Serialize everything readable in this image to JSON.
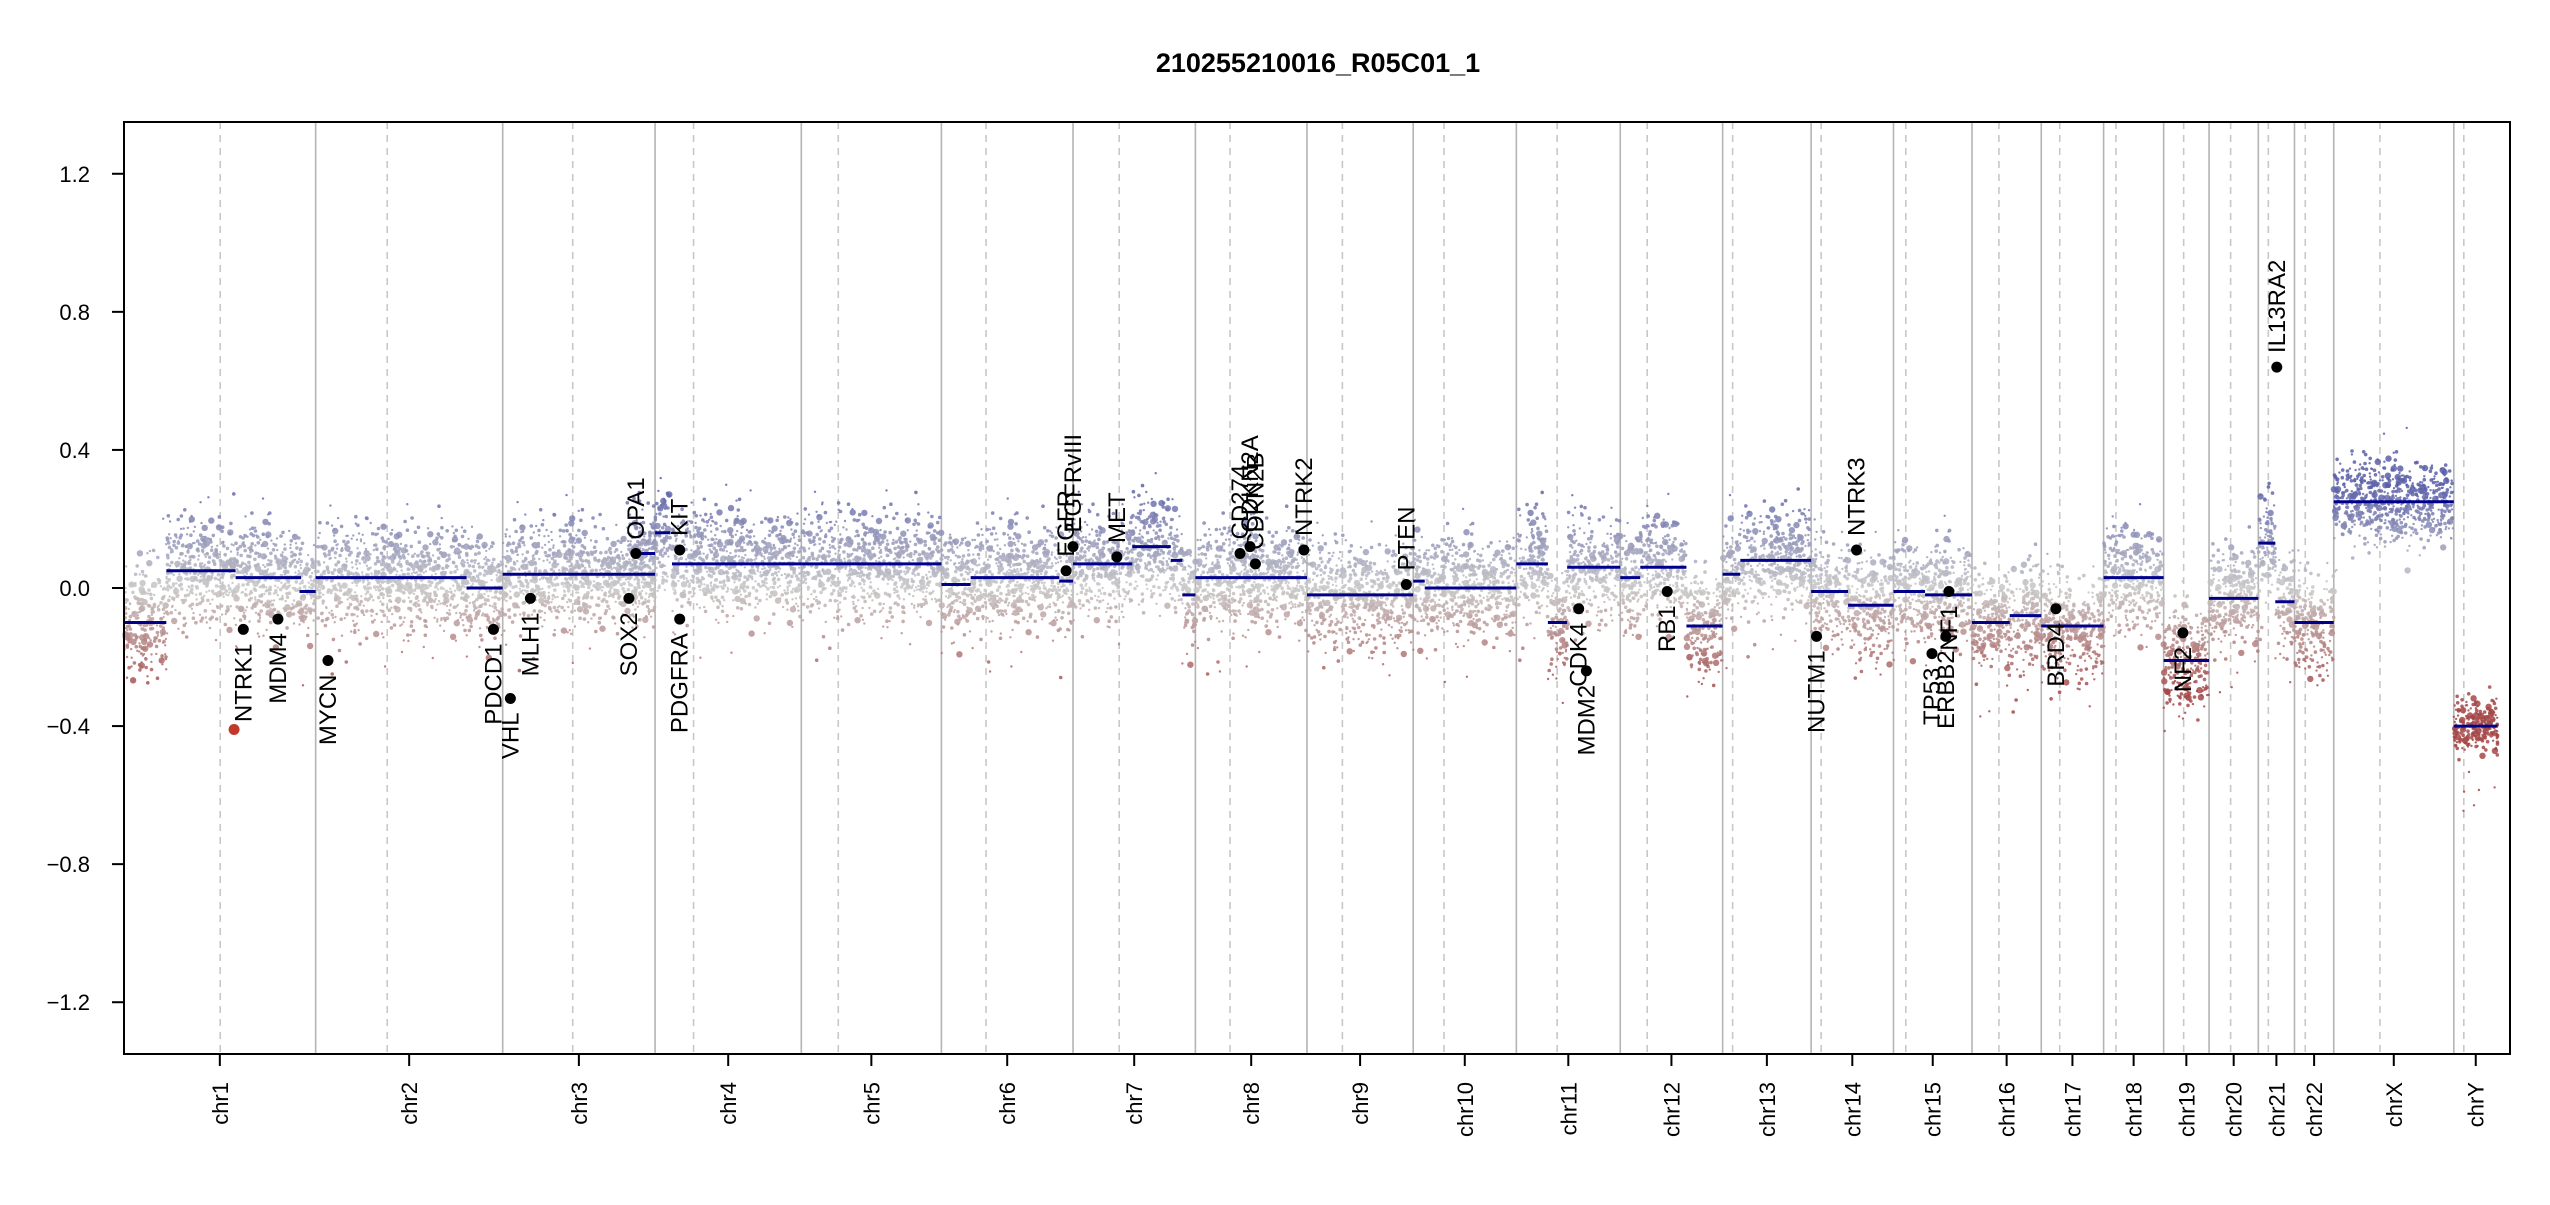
{
  "chart_data": {
    "type": "scatter",
    "title": "210255210016_R05C01_1",
    "xlabel": "",
    "ylabel": "",
    "ylim": [
      -1.35,
      1.35
    ],
    "y_ticks": [
      1.2,
      0.8,
      0.4,
      0.0,
      -0.4,
      -0.8,
      -1.2
    ],
    "y_tick_labels": [
      "1.2",
      "0.8",
      "0.4",
      "0.0",
      "−0.4",
      "−0.8",
      "−1.2"
    ],
    "x_unit": "Mb (cumulative genome position)",
    "xlim": [
      0,
      3100
    ],
    "grid": "chromosome boundaries (solid grey), centromeres (dashed grey)",
    "colors": {
      "gain": "#5a5fa8",
      "neutral": "#c8c8c8",
      "loss": "#a44848",
      "segment": "#00008b",
      "gene_point": "#000000",
      "highlight_point": "#c0392b",
      "boundary": "#b4b4b4"
    },
    "chromosomes": [
      {
        "name": "chr1",
        "start": 0,
        "end": 249,
        "centromere": 125
      },
      {
        "name": "chr2",
        "start": 249,
        "end": 492,
        "centromere": 342
      },
      {
        "name": "chr3",
        "start": 492,
        "end": 690,
        "centromere": 583
      },
      {
        "name": "chr4",
        "start": 690,
        "end": 880,
        "centromere": 740
      },
      {
        "name": "chr5",
        "start": 880,
        "end": 1062,
        "centromere": 928
      },
      {
        "name": "chr6",
        "start": 1062,
        "end": 1233,
        "centromere": 1120
      },
      {
        "name": "chr7",
        "start": 1233,
        "end": 1392,
        "centromere": 1293
      },
      {
        "name": "chr8",
        "start": 1392,
        "end": 1537,
        "centromere": 1437
      },
      {
        "name": "chr9",
        "start": 1537,
        "end": 1675,
        "centromere": 1583
      },
      {
        "name": "chr10",
        "start": 1675,
        "end": 1809,
        "centromere": 1715
      },
      {
        "name": "chr11",
        "start": 1809,
        "end": 1944,
        "centromere": 1862
      },
      {
        "name": "chr12",
        "start": 1944,
        "end": 2077,
        "centromere": 1979
      },
      {
        "name": "chr13",
        "start": 2077,
        "end": 2192,
        "centromere": 2090
      },
      {
        "name": "chr14",
        "start": 2192,
        "end": 2299,
        "centromere": 2205
      },
      {
        "name": "chr15",
        "start": 2299,
        "end": 2401,
        "centromere": 2315
      },
      {
        "name": "chr16",
        "start": 2401,
        "end": 2491,
        "centromere": 2436
      },
      {
        "name": "chr17",
        "start": 2491,
        "end": 2572,
        "centromere": 2515
      },
      {
        "name": "chr18",
        "start": 2572,
        "end": 2650,
        "centromere": 2588
      },
      {
        "name": "chr19",
        "start": 2650,
        "end": 2709,
        "centromere": 2676
      },
      {
        "name": "chr20",
        "start": 2709,
        "end": 2773,
        "centromere": 2737
      },
      {
        "name": "chr21",
        "start": 2773,
        "end": 2820,
        "centromere": 2786
      },
      {
        "name": "chr22",
        "start": 2820,
        "end": 2871,
        "centromere": 2834
      },
      {
        "name": "chrX",
        "start": 2871,
        "end": 3027,
        "centromere": 2931
      },
      {
        "name": "chrY",
        "start": 3027,
        "end": 3084,
        "centromere": 3040
      }
    ],
    "segments": [
      {
        "x0": 0,
        "x1": 55,
        "y": -0.1
      },
      {
        "x0": 55,
        "x1": 145,
        "y": 0.05
      },
      {
        "x0": 145,
        "x1": 230,
        "y": 0.03
      },
      {
        "x0": 228,
        "x1": 249,
        "y": -0.01
      },
      {
        "x0": 249,
        "x1": 445,
        "y": 0.03
      },
      {
        "x0": 445,
        "x1": 492,
        "y": 0.0
      },
      {
        "x0": 492,
        "x1": 690,
        "y": 0.04
      },
      {
        "x0": 662,
        "x1": 690,
        "y": 0.1
      },
      {
        "x0": 690,
        "x1": 710,
        "y": 0.16
      },
      {
        "x0": 712,
        "x1": 880,
        "y": 0.07
      },
      {
        "x0": 880,
        "x1": 1062,
        "y": 0.07
      },
      {
        "x0": 1062,
        "x1": 1100,
        "y": 0.01
      },
      {
        "x0": 1100,
        "x1": 1215,
        "y": 0.03
      },
      {
        "x0": 1215,
        "x1": 1233,
        "y": 0.02
      },
      {
        "x0": 1233,
        "x1": 1310,
        "y": 0.07
      },
      {
        "x0": 1310,
        "x1": 1360,
        "y": 0.12
      },
      {
        "x0": 1360,
        "x1": 1375,
        "y": 0.08
      },
      {
        "x0": 1375,
        "x1": 1392,
        "y": -0.02
      },
      {
        "x0": 1392,
        "x1": 1537,
        "y": 0.03
      },
      {
        "x0": 1537,
        "x1": 1675,
        "y": -0.02
      },
      {
        "x0": 1675,
        "x1": 1690,
        "y": 0.02
      },
      {
        "x0": 1690,
        "x1": 1809,
        "y": 0.0
      },
      {
        "x0": 1809,
        "x1": 1850,
        "y": 0.07
      },
      {
        "x0": 1850,
        "x1": 1875,
        "y": -0.1
      },
      {
        "x0": 1875,
        "x1": 1944,
        "y": 0.06
      },
      {
        "x0": 1944,
        "x1": 1970,
        "y": 0.03
      },
      {
        "x0": 1970,
        "x1": 2030,
        "y": 0.06
      },
      {
        "x0": 2030,
        "x1": 2077,
        "y": -0.11
      },
      {
        "x0": 2077,
        "x1": 2100,
        "y": 0.04
      },
      {
        "x0": 2100,
        "x1": 2192,
        "y": 0.08
      },
      {
        "x0": 2192,
        "x1": 2240,
        "y": -0.01
      },
      {
        "x0": 2240,
        "x1": 2299,
        "y": -0.05
      },
      {
        "x0": 2299,
        "x1": 2340,
        "y": -0.01
      },
      {
        "x0": 2340,
        "x1": 2401,
        "y": -0.02
      },
      {
        "x0": 2401,
        "x1": 2450,
        "y": -0.1
      },
      {
        "x0": 2450,
        "x1": 2491,
        "y": -0.08
      },
      {
        "x0": 2491,
        "x1": 2572,
        "y": -0.11
      },
      {
        "x0": 2572,
        "x1": 2650,
        "y": 0.03
      },
      {
        "x0": 2650,
        "x1": 2709,
        "y": -0.21
      },
      {
        "x0": 2709,
        "x1": 2773,
        "y": -0.03
      },
      {
        "x0": 2773,
        "x1": 2795,
        "y": 0.13
      },
      {
        "x0": 2795,
        "x1": 2820,
        "y": -0.04
      },
      {
        "x0": 2820,
        "x1": 2871,
        "y": -0.1
      },
      {
        "x0": 2871,
        "x1": 3027,
        "y": 0.25
      },
      {
        "x0": 3027,
        "x1": 3084,
        "y": -0.4
      }
    ],
    "genes": [
      {
        "name": "NTRK1",
        "x": 155,
        "y": -0.12,
        "highlight": false
      },
      {
        "name": "",
        "x": 143,
        "y": -0.41,
        "highlight": true
      },
      {
        "name": "MDM4",
        "x": 200,
        "y": -0.09,
        "highlight": false
      },
      {
        "name": "MYCN",
        "x": 265,
        "y": -0.21,
        "highlight": false
      },
      {
        "name": "PDCD1",
        "x": 480,
        "y": -0.12,
        "highlight": false
      },
      {
        "name": "VHL",
        "x": 502,
        "y": -0.32,
        "highlight": false
      },
      {
        "name": "MLH1",
        "x": 528,
        "y": -0.03,
        "highlight": false
      },
      {
        "name": "SOX2",
        "x": 656,
        "y": -0.03,
        "highlight": false
      },
      {
        "name": "OPA1",
        "x": 665,
        "y": 0.1,
        "highlight": false
      },
      {
        "name": "KIT",
        "x": 722,
        "y": 0.11,
        "highlight": false
      },
      {
        "name": "PDGFRA",
        "x": 722,
        "y": -0.09,
        "highlight": false
      },
      {
        "name": "EGFR",
        "x": 1224,
        "y": 0.05,
        "highlight": false
      },
      {
        "name": "EGFRvIII",
        "x": 1233,
        "y": 0.12,
        "highlight": false
      },
      {
        "name": "MET",
        "x": 1290,
        "y": 0.09,
        "highlight": false
      },
      {
        "name": "CD274",
        "x": 1450,
        "y": 0.1,
        "highlight": false
      },
      {
        "name": "CDKN2A",
        "x": 1463,
        "y": 0.12,
        "highlight": false
      },
      {
        "name": "CDKN2B",
        "x": 1470,
        "y": 0.07,
        "highlight": false
      },
      {
        "name": "NTRK2",
        "x": 1533,
        "y": 0.11,
        "highlight": false
      },
      {
        "name": "PTEN",
        "x": 1666,
        "y": 0.01,
        "highlight": false
      },
      {
        "name": "CDK4",
        "x": 1890,
        "y": -0.06,
        "highlight": false
      },
      {
        "name": "MDM2",
        "x": 1900,
        "y": -0.24,
        "highlight": false
      },
      {
        "name": "RB1",
        "x": 2005,
        "y": -0.01,
        "highlight": false
      },
      {
        "name": "NUTM1",
        "x": 2199,
        "y": -0.14,
        "highlight": false
      },
      {
        "name": "NTRK3",
        "x": 2251,
        "y": 0.11,
        "highlight": false
      },
      {
        "name": "TP53",
        "x": 2349,
        "y": -0.19,
        "highlight": false
      },
      {
        "name": "ERBB2",
        "x": 2367,
        "y": -0.14,
        "highlight": false
      },
      {
        "name": "NF1",
        "x": 2371,
        "y": -0.01,
        "highlight": false
      },
      {
        "name": "BRD4",
        "x": 2510,
        "y": -0.06,
        "highlight": false
      },
      {
        "name": "NF2",
        "x": 2675,
        "y": -0.13,
        "highlight": false
      },
      {
        "name": "IL13RA2",
        "x": 2797,
        "y": 0.64,
        "highlight": false
      }
    ]
  }
}
